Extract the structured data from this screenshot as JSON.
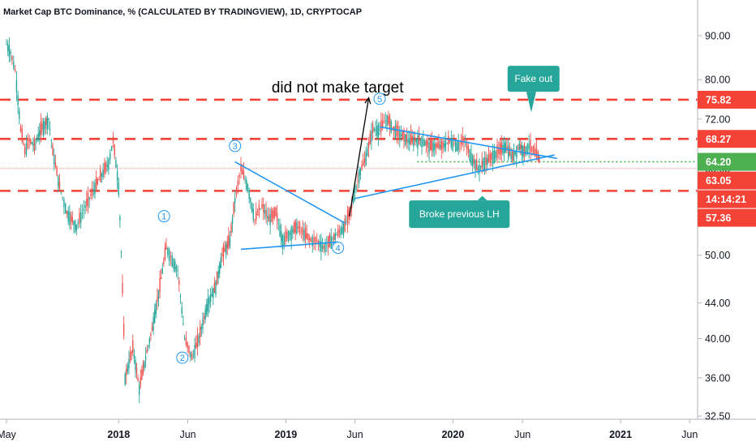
{
  "chart_data": {
    "type": "line",
    "title": "Market Cap BTC Dominance, % (CALCULATED BY TRADINGVIEW), 1D, CRYPTOCAP",
    "x_axis": {
      "ticks": [
        "May",
        "2018",
        "Jun",
        "2019",
        "Jun",
        "2020",
        "Jun",
        "2021",
        "Jun"
      ],
      "tick_dates": [
        "2017-05-01",
        "2018-01-01",
        "2018-06-01",
        "2019-01-01",
        "2019-06-01",
        "2020-01-01",
        "2020-06-01",
        "2021-01-01",
        "2021-06-01"
      ],
      "range": [
        "2017-05-01",
        "2021-06-15"
      ]
    },
    "y_axis": {
      "scale": "log",
      "ticks": [
        "90.00",
        "80.00",
        "72.00",
        "63.05",
        "50.00",
        "44.00",
        "40.00",
        "36.00",
        "32.50"
      ],
      "tick_values": [
        90,
        80,
        72,
        63.05,
        50,
        44,
        40,
        36,
        32.5
      ],
      "range": [
        32.5,
        100
      ]
    },
    "price_tags": [
      {
        "label": "75.82",
        "value": 75.82,
        "color": "#f44336"
      },
      {
        "label": "68.27",
        "value": 68.27,
        "color": "#f44336"
      },
      {
        "label": "64.20",
        "value": 64.2,
        "color": "#4caf50"
      },
      {
        "label": "63.05",
        "value": 63.05,
        "color": "#f44336"
      },
      {
        "label": "14:14:21",
        "value": 59.4,
        "color": "#f44336"
      },
      {
        "label": "57.36",
        "value": 57.36,
        "color": "#f44336"
      }
    ],
    "horizontal_lines": [
      {
        "value": 75.82,
        "style": "dashed",
        "color": "#f44336"
      },
      {
        "value": 68.27,
        "style": "dashed",
        "color": "#f44336"
      },
      {
        "value": 59.4,
        "style": "dashed",
        "color": "#f44336"
      },
      {
        "value": 64.2,
        "style": "dotted",
        "color": "#4caf50",
        "from": "2019-10-15"
      },
      {
        "value": 63.05,
        "style": "thin",
        "color": "#f44336"
      }
    ],
    "series": [
      {
        "values_note": "approximate closing levels (%)",
        "x": [
          "2017-05-01",
          "2017-05-10",
          "2017-05-20",
          "2017-06-01",
          "2017-06-10",
          "2017-06-20",
          "2017-07-01",
          "2017-07-15",
          "2017-08-01",
          "2017-08-10",
          "2017-08-25",
          "2017-09-10",
          "2017-10-01",
          "2017-10-20",
          "2017-11-10",
          "2017-11-25",
          "2017-12-10",
          "2017-12-20",
          "2018-01-01",
          "2018-01-15",
          "2018-02-01",
          "2018-02-15",
          "2018-03-01",
          "2018-03-15",
          "2018-04-01",
          "2018-04-15",
          "2018-05-01",
          "2018-05-10",
          "2018-05-25",
          "2018-06-10",
          "2018-06-25",
          "2018-07-15",
          "2018-08-01",
          "2018-08-15",
          "2018-09-01",
          "2018-09-12",
          "2018-09-25",
          "2018-10-10",
          "2018-10-25",
          "2018-11-10",
          "2018-11-25",
          "2018-12-10",
          "2018-12-25",
          "2019-01-10",
          "2019-01-25",
          "2019-02-10",
          "2019-02-25",
          "2019-03-10",
          "2019-03-25",
          "2019-04-10",
          "2019-04-25",
          "2019-05-10",
          "2019-05-25",
          "2019-06-10",
          "2019-06-25",
          "2019-07-10",
          "2019-07-25",
          "2019-08-10",
          "2019-08-25",
          "2019-09-10",
          "2019-09-25",
          "2019-10-10",
          "2019-10-25",
          "2019-11-10",
          "2019-11-25",
          "2019-12-10",
          "2019-12-25",
          "2020-01-10",
          "2020-01-25",
          "2020-02-10",
          "2020-02-25",
          "2020-03-10",
          "2020-03-25",
          "2020-04-10",
          "2020-04-25",
          "2020-05-10",
          "2020-05-25",
          "2020-06-05",
          "2020-06-15",
          "2020-06-25",
          "2020-07-05",
          "2020-07-10"
        ],
        "values": [
          88,
          86,
          82,
          70,
          66,
          68,
          67,
          70,
          72,
          66,
          60,
          56,
          54,
          57,
          60,
          62,
          64,
          68,
          60,
          36,
          39,
          35,
          38,
          41,
          46,
          51,
          49,
          48,
          40,
          38,
          40,
          44,
          46,
          50,
          52,
          58,
          63,
          60,
          55,
          57,
          55,
          56,
          52,
          53,
          54,
          53,
          52,
          52,
          51,
          52,
          53,
          54,
          57,
          62,
          65,
          70,
          70,
          72,
          70,
          69,
          68,
          68,
          68,
          67,
          67,
          67,
          68,
          67,
          68,
          65,
          63,
          64,
          65,
          66,
          67,
          65,
          67,
          66,
          67,
          66,
          65,
          64
        ]
      }
    ],
    "annotations": [
      {
        "type": "text",
        "text": "did not make target"
      },
      {
        "type": "callout",
        "text": "Fake out",
        "color": "#26a69a"
      },
      {
        "type": "callout",
        "text": "Broke previous LH",
        "color": "#26a69a"
      },
      {
        "type": "wave-label",
        "text": "1",
        "x": "2018-04-10",
        "y": 55.5
      },
      {
        "type": "wave-label",
        "text": "2",
        "x": "2018-05-20",
        "y": 38.0
      },
      {
        "type": "wave-label",
        "text": "3",
        "x": "2018-09-12",
        "y": 67.0
      },
      {
        "type": "wave-label",
        "text": "4",
        "x": "2019-04-25",
        "y": 51.0
      },
      {
        "type": "wave-label",
        "text": "5",
        "x": "2019-07-25",
        "y": 76.0
      }
    ],
    "grid": false,
    "legend": "none"
  }
}
